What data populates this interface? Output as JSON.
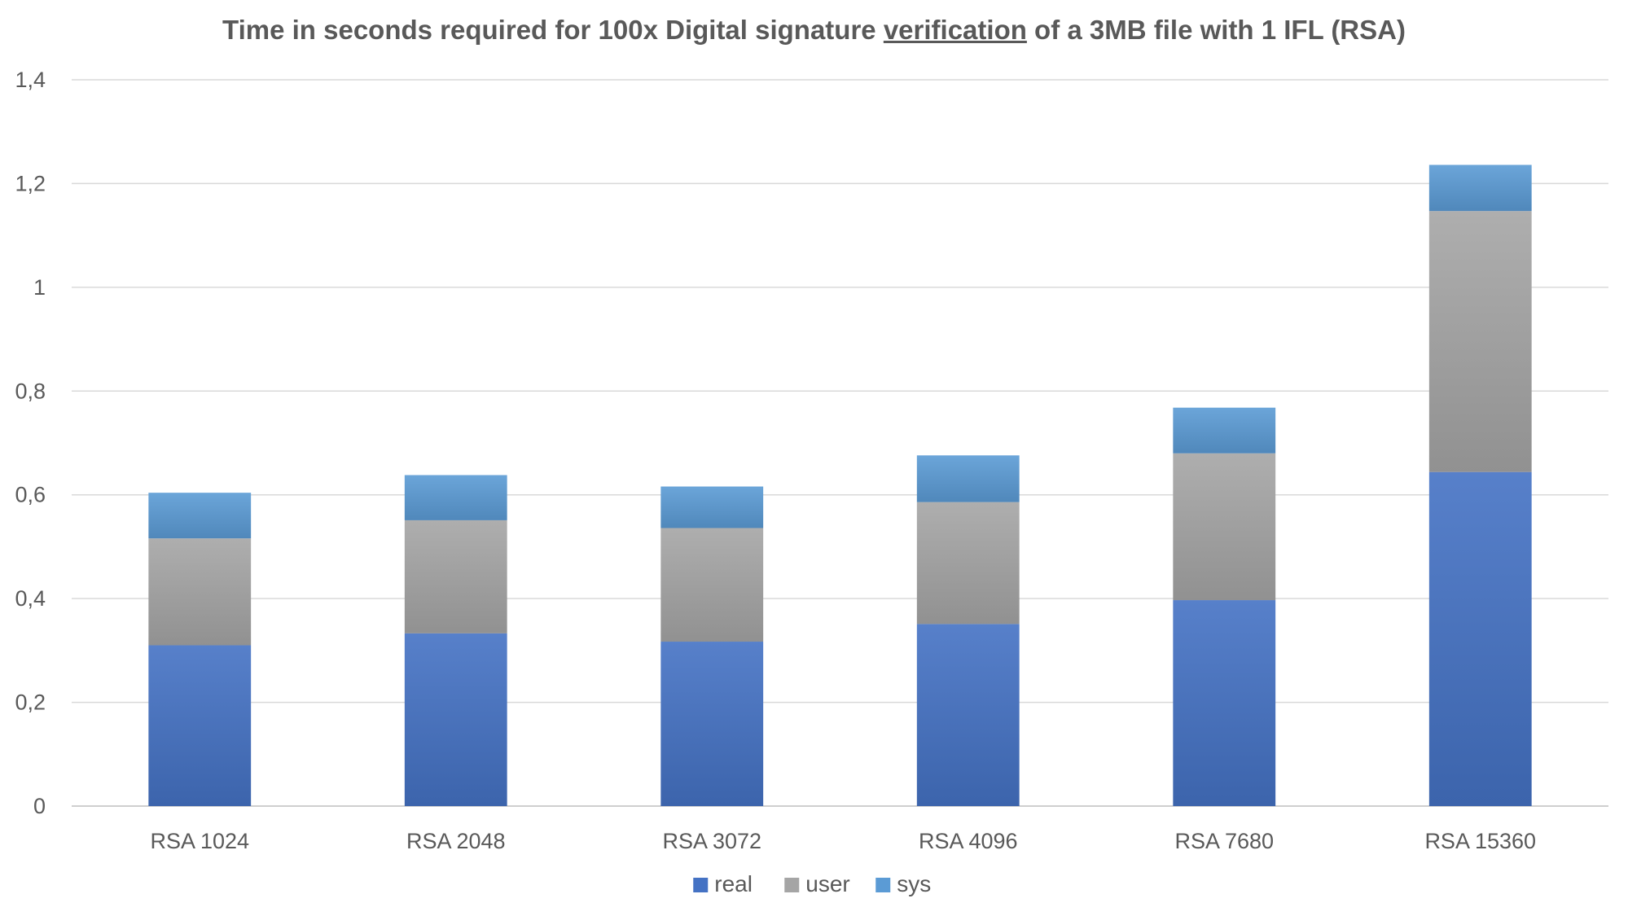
{
  "chart_data": {
    "type": "bar",
    "stacked": true,
    "title_parts": [
      "Time in seconds required for 100x Digital signature ",
      "verification",
      " of a 3MB file with 1 IFL (RSA)"
    ],
    "categories": [
      "RSA 1024",
      "RSA 2048",
      "RSA 3072",
      "RSA 4096",
      "RSA 7680",
      "RSA 15360"
    ],
    "series": [
      {
        "name": "real",
        "values": [
          0.31,
          0.333,
          0.317,
          0.351,
          0.397,
          0.644
        ],
        "color": "#4472C4"
      },
      {
        "name": "user",
        "values": [
          0.206,
          0.218,
          0.219,
          0.235,
          0.283,
          0.503
        ],
        "color": "#A5A5A5"
      },
      {
        "name": "sys",
        "values": [
          0.088,
          0.087,
          0.08,
          0.09,
          0.088,
          0.089
        ],
        "color": "#5B9BD5"
      }
    ],
    "y_ticks": [
      "0",
      "0,2",
      "0,4",
      "0,6",
      "0,8",
      "1",
      "1,2",
      "1,4"
    ],
    "ylim": [
      0,
      1.4
    ],
    "xlabel": "",
    "ylabel": "",
    "grid": true,
    "legend_position": "bottom"
  }
}
